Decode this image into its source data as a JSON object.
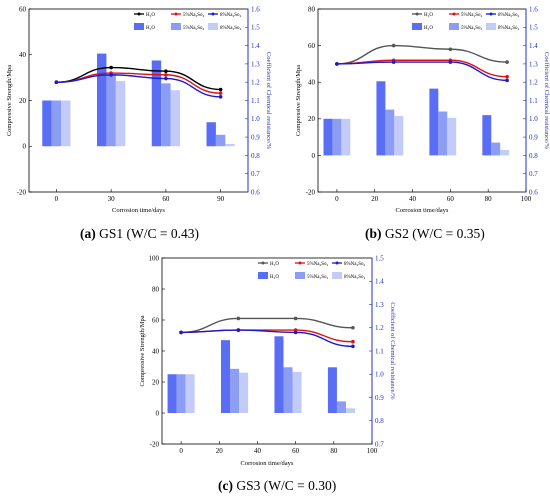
{
  "chart_data": [
    {
      "type": "bar+line",
      "panel": "GS1",
      "caption_letter": "(a)",
      "caption_text": "GS1 (W/C = 0.43)",
      "xlabel": "Corrosion time/days",
      "ylabel": "Compressive Strength/Mpa",
      "y2label": "Coefficient of Chemical resistance/%",
      "ylim": [
        -20,
        60
      ],
      "yticks": [
        -20,
        0,
        20,
        40,
        60
      ],
      "y2lim": [
        0.6,
        1.6
      ],
      "y2ticks": [
        0.6,
        0.7,
        0.8,
        0.9,
        1.0,
        1.1,
        1.2,
        1.3,
        1.4,
        1.5,
        1.6
      ],
      "xlim": [
        -15,
        105
      ],
      "xticks": [
        0,
        30,
        60,
        90
      ],
      "x": [
        0,
        30,
        60,
        90
      ],
      "bar_series": [
        {
          "name": "H₂O",
          "values": [
            20,
            40.5,
            37.5,
            10.5
          ]
        },
        {
          "name": "5%Na₂So₄",
          "values": [
            20,
            31.5,
            27.5,
            5
          ]
        },
        {
          "name": "8%Na₂So₄",
          "values": [
            20,
            28.5,
            24.5,
            1
          ]
        }
      ],
      "line_series": [
        {
          "name": "H₂O",
          "values": [
            1.2,
            1.28,
            1.26,
            1.16
          ]
        },
        {
          "name": "5%Na₂So₄",
          "values": [
            1.2,
            1.25,
            1.24,
            1.14
          ]
        },
        {
          "name": "8%Na₂So₄",
          "values": [
            1.2,
            1.24,
            1.22,
            1.12
          ]
        }
      ],
      "line_colors": [
        "#000000",
        "#e0101a",
        "#1a1ad0"
      ],
      "legend_position": "top-right",
      "legend_layout": "two-row"
    },
    {
      "type": "bar+line",
      "panel": "GS2",
      "caption_letter": "(b)",
      "caption_text": "GS2 (W/C = 0.35)",
      "xlabel": "Corrosion time/days",
      "ylabel": "Compressive Strength/Mpa",
      "y2label": "Coefficient of Chemical resistance/%",
      "ylim": [
        -20,
        80
      ],
      "yticks": [
        -20,
        0,
        20,
        40,
        60,
        80
      ],
      "y2lim": [
        0.6,
        1.6
      ],
      "y2ticks": [
        0.6,
        0.7,
        0.8,
        0.9,
        1.0,
        1.1,
        1.2,
        1.3,
        1.4,
        1.5,
        1.6
      ],
      "xlim": [
        -10,
        100
      ],
      "xticks": [
        0,
        20,
        40,
        60,
        80,
        100
      ],
      "x": [
        0,
        28,
        56,
        84
      ],
      "line_x": [
        0,
        30,
        60,
        90
      ],
      "bar_series": [
        {
          "name": "H₂O",
          "values": [
            20,
            40.5,
            36.5,
            22
          ]
        },
        {
          "name": "5%Na₂So₄",
          "values": [
            20,
            25,
            24,
            7
          ]
        },
        {
          "name": "8%Na₂So₄",
          "values": [
            20,
            21.5,
            20.5,
            3
          ]
        }
      ],
      "line_series": [
        {
          "name": "H₂O",
          "values": [
            1.3,
            1.4,
            1.38,
            1.31
          ]
        },
        {
          "name": "5%Na₂So₄",
          "values": [
            1.3,
            1.32,
            1.32,
            1.23
          ]
        },
        {
          "name": "8%Na₂So₄",
          "values": [
            1.3,
            1.31,
            1.31,
            1.21
          ]
        }
      ],
      "line_colors": [
        "#555555",
        "#e0101a",
        "#1a1ad0"
      ],
      "legend_position": "top-right",
      "legend_layout": "two-row"
    },
    {
      "type": "bar+line",
      "panel": "GS3",
      "caption_letter": "(c)",
      "caption_text": "GS3 (W/C = 0.30)",
      "xlabel": "Corrosion time/days",
      "ylabel": "Compressive Strength/Mpa",
      "y2label": "Coefficient of Chemical resistance/%",
      "ylim": [
        -20,
        100
      ],
      "yticks": [
        -20,
        0,
        20,
        40,
        60,
        80,
        100
      ],
      "y2lim": [
        0.7,
        1.5
      ],
      "y2ticks": [
        0.7,
        0.8,
        0.9,
        1.0,
        1.1,
        1.2,
        1.3,
        1.4,
        1.5
      ],
      "xlim": [
        -10,
        100
      ],
      "xticks": [
        0,
        20,
        40,
        60,
        80,
        100
      ],
      "x": [
        0,
        28,
        56,
        84
      ],
      "line_x": [
        0,
        30,
        60,
        90
      ],
      "bar_series": [
        {
          "name": "H₂O",
          "values": [
            25,
            47,
            49.5,
            29.5
          ]
        },
        {
          "name": "5%Na₂So₄",
          "values": [
            25,
            28.5,
            29.5,
            7.5
          ]
        },
        {
          "name": "8%Na₂So₄",
          "values": [
            25,
            26,
            26.5,
            3
          ]
        }
      ],
      "line_series": [
        {
          "name": "H₂O",
          "values": [
            1.18,
            1.24,
            1.24,
            1.2
          ]
        },
        {
          "name": "5%Na₂So₄",
          "values": [
            1.18,
            1.19,
            1.19,
            1.14
          ]
        },
        {
          "name": "8%Na₂So₄",
          "values": [
            1.18,
            1.19,
            1.18,
            1.12
          ]
        }
      ],
      "line_colors": [
        "#555555",
        "#e0101a",
        "#1a1ad0"
      ],
      "legend_position": "top-right",
      "legend_layout": "two-row"
    }
  ],
  "bar_colors": [
    "#5a6ef5",
    "#8c9df5",
    "#c3cbf8"
  ],
  "legend_bar_labels": [
    "H₂O",
    "5%Na₂So₄",
    "8%Na₂So₄"
  ],
  "legend_line_labels": [
    "H₂O",
    "5%Na₂So₄",
    "8%Na₂So₄"
  ]
}
